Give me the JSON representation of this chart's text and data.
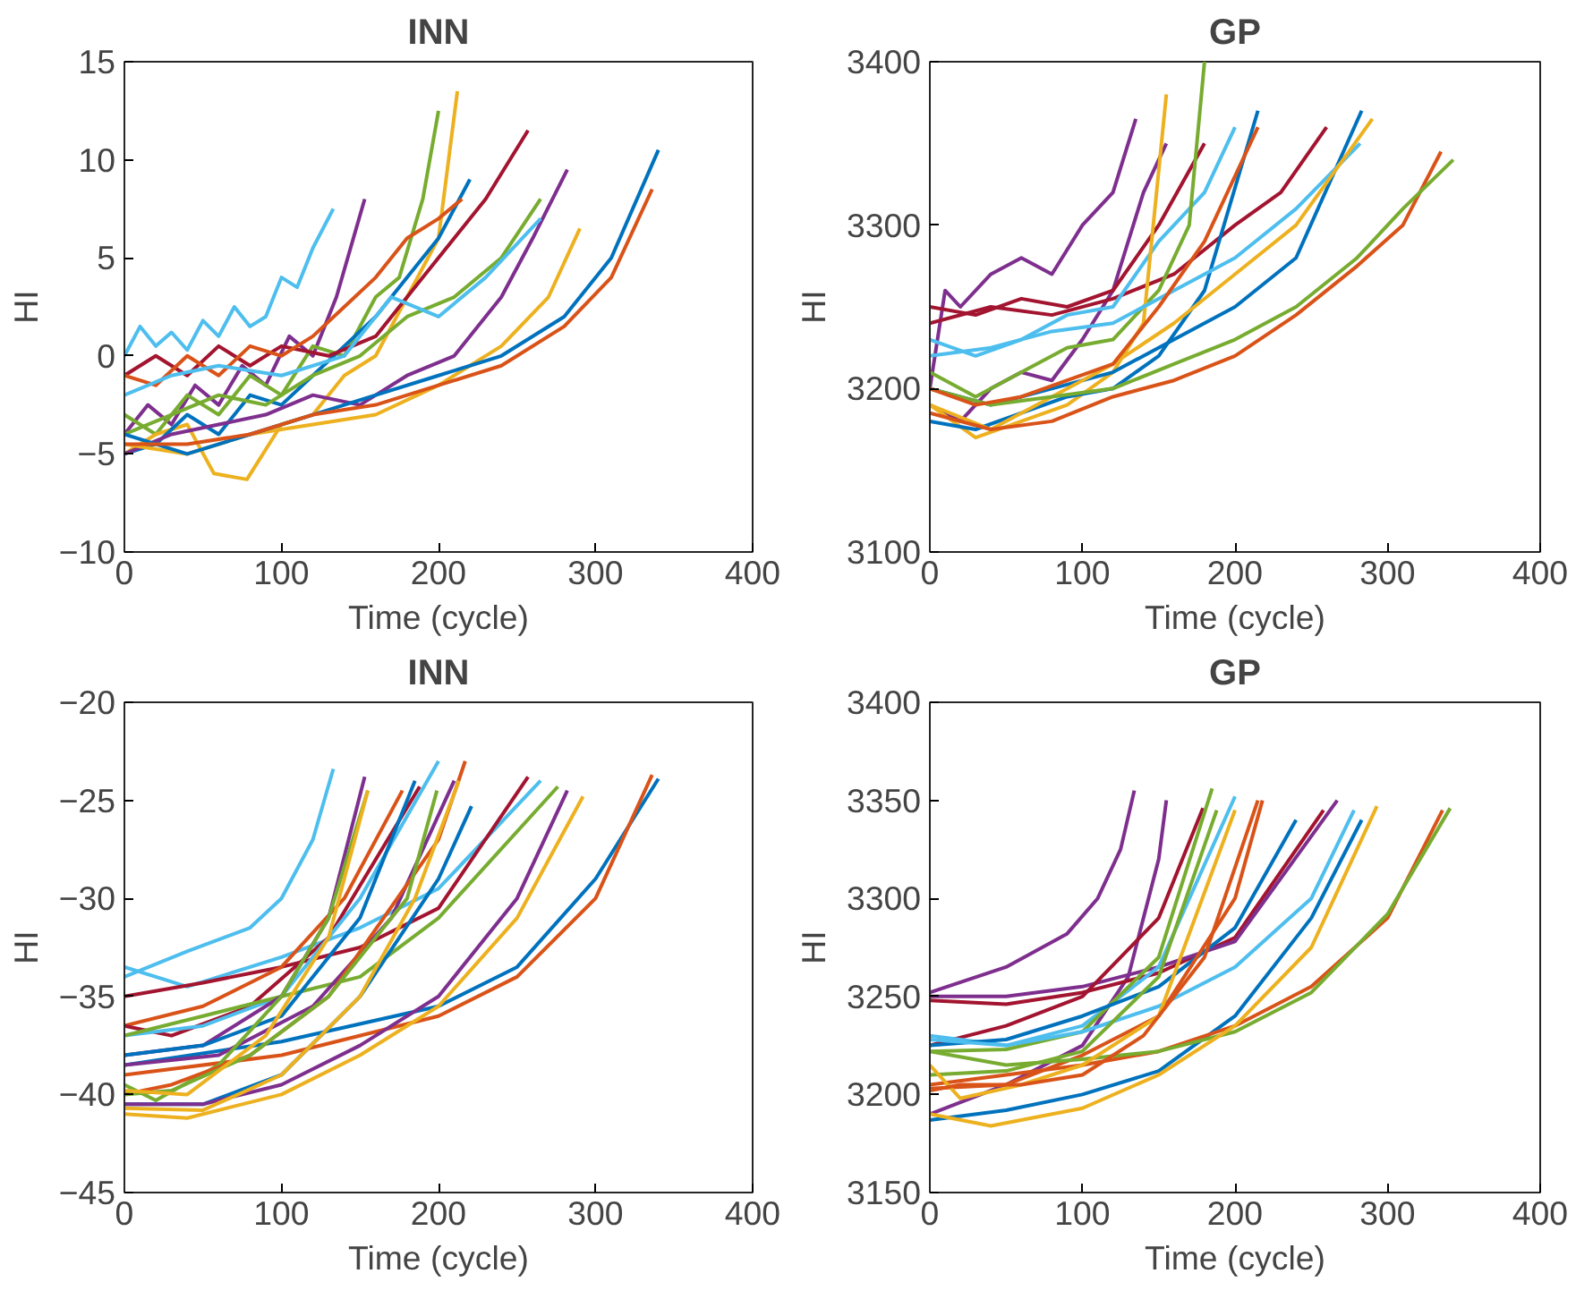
{
  "chart_data": [
    {
      "type": "line",
      "title": "INN",
      "xlabel": "Time (cycle)",
      "ylabel": "HI",
      "xlim": [
        0,
        400
      ],
      "ylim": [
        -10,
        15
      ],
      "xticks": [
        0,
        100,
        200,
        300,
        400
      ],
      "yticks": [
        -10,
        -5,
        0,
        5,
        10,
        15
      ],
      "grid": false,
      "series": [
        {
          "color": "#4dbeee",
          "x": [
            0,
            10,
            20,
            30,
            40,
            50,
            60,
            70,
            80,
            90,
            100,
            110,
            120,
            133
          ],
          "values": [
            0,
            1.5,
            0.5,
            1.2,
            0.3,
            1.8,
            1,
            2.5,
            1.5,
            2,
            4,
            3.5,
            5.5,
            7.5
          ]
        },
        {
          "color": "#7e2f8e",
          "x": [
            0,
            15,
            30,
            45,
            60,
            75,
            90,
            105,
            120,
            135,
            153
          ],
          "values": [
            -4,
            -2.5,
            -3.5,
            -1.5,
            -2.5,
            -0.5,
            -1.5,
            1,
            0,
            3,
            8
          ]
        },
        {
          "color": "#77ac30",
          "x": [
            0,
            20,
            40,
            60,
            80,
            100,
            120,
            140,
            160,
            175,
            190,
            200
          ],
          "values": [
            -3,
            -4,
            -2,
            -3,
            -1,
            -2,
            0.5,
            0,
            3,
            4,
            8,
            12.5
          ]
        },
        {
          "color": "#edb120",
          "x": [
            0,
            20,
            40,
            57,
            78,
            100,
            120,
            140,
            160,
            180,
            200,
            212
          ],
          "values": [
            -5,
            -4,
            -3.5,
            -6,
            -6.3,
            -3.5,
            -3,
            -1,
            0,
            3,
            6,
            13.5
          ]
        },
        {
          "color": "#0072bd",
          "x": [
            0,
            20,
            40,
            60,
            80,
            100,
            120,
            140,
            160,
            180,
            200,
            220
          ],
          "values": [
            -5,
            -4.5,
            -3,
            -4,
            -2,
            -2.5,
            -1,
            0.5,
            2,
            4,
            6,
            9
          ]
        },
        {
          "color": "#a2142f",
          "x": [
            0,
            20,
            40,
            60,
            80,
            100,
            130,
            160,
            190,
            210,
            230,
            257
          ],
          "values": [
            -1,
            0,
            -1,
            0.5,
            -0.5,
            0.5,
            0,
            1,
            4,
            6,
            8,
            11.5
          ]
        },
        {
          "color": "#d95319",
          "x": [
            0,
            20,
            40,
            60,
            80,
            100,
            120,
            140,
            160,
            180,
            200,
            215
          ],
          "values": [
            -1,
            -1.5,
            0,
            -1,
            0.5,
            0,
            1,
            2.5,
            4,
            6,
            7,
            8
          ]
        },
        {
          "color": "#7e2f8e",
          "x": [
            0,
            30,
            60,
            90,
            120,
            150,
            180,
            210,
            240,
            260,
            282
          ],
          "values": [
            -5,
            -4,
            -3.5,
            -3,
            -2,
            -2.5,
            -1,
            0,
            3,
            6,
            9.5
          ]
        },
        {
          "color": "#77ac30",
          "x": [
            0,
            30,
            60,
            90,
            120,
            150,
            180,
            210,
            240,
            265
          ],
          "values": [
            -4,
            -3,
            -2,
            -2.5,
            -1,
            0,
            2,
            3,
            5,
            8
          ]
        },
        {
          "color": "#4dbeee",
          "x": [
            0,
            30,
            60,
            100,
            140,
            170,
            200,
            230,
            265
          ],
          "values": [
            -2,
            -1,
            -0.5,
            -1,
            0,
            3,
            2,
            4,
            7
          ]
        },
        {
          "color": "#edb120",
          "x": [
            0,
            40,
            80,
            120,
            160,
            200,
            240,
            270,
            290
          ],
          "values": [
            -4.5,
            -5,
            -4,
            -3.5,
            -3,
            -1.5,
            0.5,
            3,
            6.5
          ]
        },
        {
          "color": "#0072bd",
          "x": [
            0,
            40,
            80,
            120,
            160,
            200,
            240,
            280,
            310,
            340
          ],
          "values": [
            -4,
            -5,
            -4,
            -3,
            -2,
            -1,
            0,
            2,
            5,
            10.5
          ]
        },
        {
          "color": "#d95319",
          "x": [
            0,
            40,
            80,
            120,
            160,
            200,
            240,
            280,
            310,
            336
          ],
          "values": [
            -4.5,
            -4.5,
            -4,
            -3,
            -2.5,
            -1.5,
            -0.5,
            1.5,
            4,
            8.5
          ]
        }
      ]
    },
    {
      "type": "line",
      "title": "GP",
      "xlabel": "Time (cycle)",
      "ylabel": "HI",
      "xlim": [
        0,
        400
      ],
      "ylim": [
        3100,
        3400
      ],
      "xticks": [
        0,
        100,
        200,
        300,
        400
      ],
      "yticks": [
        3100,
        3200,
        3300,
        3400
      ],
      "grid": false,
      "series": [
        {
          "color": "#7e2f8e",
          "x": [
            0,
            10,
            20,
            40,
            60,
            80,
            100,
            120,
            135
          ],
          "values": [
            3200,
            3260,
            3250,
            3270,
            3280,
            3270,
            3300,
            3320,
            3365
          ]
        },
        {
          "color": "#7e2f8e",
          "x": [
            0,
            20,
            40,
            60,
            80,
            100,
            120,
            140,
            155
          ],
          "values": [
            3190,
            3180,
            3200,
            3210,
            3205,
            3230,
            3260,
            3320,
            3350
          ]
        },
        {
          "color": "#a2142f",
          "x": [
            0,
            30,
            60,
            90,
            120,
            150,
            180
          ],
          "values": [
            3250,
            3245,
            3255,
            3250,
            3260,
            3300,
            3350
          ]
        },
        {
          "color": "#a2142f",
          "x": [
            0,
            40,
            80,
            120,
            160,
            200,
            230,
            260
          ],
          "values": [
            3240,
            3250,
            3245,
            3255,
            3270,
            3300,
            3320,
            3360
          ]
        },
        {
          "color": "#4dbeee",
          "x": [
            0,
            30,
            60,
            90,
            120,
            150,
            180,
            200
          ],
          "values": [
            3230,
            3220,
            3230,
            3245,
            3250,
            3290,
            3320,
            3360
          ]
        },
        {
          "color": "#77ac30",
          "x": [
            0,
            30,
            60,
            90,
            120,
            150,
            170,
            180
          ],
          "values": [
            3210,
            3195,
            3210,
            3225,
            3230,
            3260,
            3300,
            3400
          ]
        },
        {
          "color": "#edb120",
          "x": [
            0,
            30,
            60,
            90,
            120,
            140,
            155
          ],
          "values": [
            3190,
            3170,
            3180,
            3190,
            3210,
            3240,
            3380
          ]
        },
        {
          "color": "#0072bd",
          "x": [
            0,
            30,
            60,
            90,
            120,
            150,
            180,
            215
          ],
          "values": [
            3180,
            3175,
            3185,
            3195,
            3200,
            3220,
            3260,
            3370
          ]
        },
        {
          "color": "#0072bd",
          "x": [
            0,
            40,
            80,
            120,
            160,
            200,
            240,
            283
          ],
          "values": [
            3200,
            3190,
            3200,
            3210,
            3230,
            3250,
            3280,
            3370
          ]
        },
        {
          "color": "#4dbeee",
          "x": [
            0,
            40,
            80,
            120,
            160,
            200,
            240,
            282
          ],
          "values": [
            3220,
            3225,
            3235,
            3240,
            3260,
            3280,
            3310,
            3350
          ]
        },
        {
          "color": "#edb120",
          "x": [
            0,
            40,
            80,
            120,
            160,
            200,
            240,
            290
          ],
          "values": [
            3190,
            3175,
            3195,
            3215,
            3240,
            3270,
            3300,
            3365
          ]
        },
        {
          "color": "#d95319",
          "x": [
            0,
            40,
            80,
            120,
            160,
            200,
            240,
            280,
            310,
            335
          ],
          "values": [
            3185,
            3175,
            3180,
            3195,
            3205,
            3220,
            3245,
            3275,
            3300,
            3345
          ]
        },
        {
          "color": "#77ac30",
          "x": [
            0,
            40,
            80,
            120,
            160,
            200,
            240,
            280,
            310,
            343
          ],
          "values": [
            3200,
            3190,
            3195,
            3200,
            3215,
            3230,
            3250,
            3280,
            3310,
            3340
          ]
        },
        {
          "color": "#d95319",
          "x": [
            0,
            30,
            60,
            90,
            120,
            150,
            180,
            215
          ],
          "values": [
            3200,
            3190,
            3195,
            3205,
            3215,
            3250,
            3290,
            3360
          ]
        }
      ]
    },
    {
      "type": "line",
      "title": "INN",
      "xlabel": "Time (cycle)",
      "ylabel": "HI",
      "xlim": [
        0,
        400
      ],
      "ylim": [
        -45,
        -20
      ],
      "xticks": [
        0,
        100,
        200,
        300,
        400
      ],
      "yticks": [
        -45,
        -40,
        -35,
        -30,
        -25,
        -20
      ],
      "grid": false,
      "series": [
        {
          "color": "#4dbeee",
          "x": [
            0,
            40,
            80,
            100,
            120,
            133
          ],
          "values": [
            -34,
            -32.7,
            -31.5,
            -30,
            -27,
            -23.4
          ]
        },
        {
          "color": "#4dbeee",
          "x": [
            0,
            40,
            100,
            150,
            200,
            265
          ],
          "values": [
            -33.5,
            -34.5,
            -33,
            -31.5,
            -29.5,
            -24
          ]
        },
        {
          "color": "#a2142f",
          "x": [
            0,
            50,
            100,
            150,
            200,
            257
          ],
          "values": [
            -35,
            -34.3,
            -33.5,
            -32.5,
            -30.5,
            -23.8
          ]
        },
        {
          "color": "#d95319",
          "x": [
            0,
            50,
            100,
            140,
            177
          ],
          "values": [
            -36.5,
            -35.5,
            -33.5,
            -30,
            -24.5
          ]
        },
        {
          "color": "#a2142f",
          "x": [
            0,
            30,
            80,
            130,
            188
          ],
          "values": [
            -36.5,
            -37,
            -35.5,
            -32,
            -24.3
          ]
        },
        {
          "color": "#4dbeee",
          "x": [
            0,
            50,
            100,
            150,
            200
          ],
          "values": [
            -37,
            -36.5,
            -35,
            -30,
            -23
          ]
        },
        {
          "color": "#77ac30",
          "x": [
            0,
            50,
            100,
            150,
            200,
            276
          ],
          "values": [
            -37,
            -36,
            -35,
            -34,
            -31,
            -24.3
          ]
        },
        {
          "color": "#7e2f8e",
          "x": [
            0,
            50,
            100,
            130,
            153
          ],
          "values": [
            -38,
            -37.5,
            -35,
            -31,
            -23.8
          ]
        },
        {
          "color": "#0072bd",
          "x": [
            0,
            50,
            100,
            150,
            185
          ],
          "values": [
            -38,
            -37.5,
            -36,
            -31,
            -24
          ]
        },
        {
          "color": "#0072bd",
          "x": [
            0,
            100,
            200,
            250,
            300,
            340
          ],
          "values": [
            -38.5,
            -37.3,
            -35.5,
            -33.5,
            -29,
            -23.9
          ]
        },
        {
          "color": "#d95319",
          "x": [
            0,
            100,
            200,
            250,
            300,
            336
          ],
          "values": [
            -39,
            -38,
            -36,
            -34,
            -30,
            -23.7
          ]
        },
        {
          "color": "#7e2f8e",
          "x": [
            0,
            60,
            120,
            170,
            210
          ],
          "values": [
            -38.5,
            -38,
            -35.5,
            -31,
            -24
          ]
        },
        {
          "color": "#77ac30",
          "x": [
            0,
            20,
            60,
            100,
            130,
            155
          ],
          "values": [
            -39.5,
            -40.3,
            -38.5,
            -35,
            -31,
            -24.5
          ]
        },
        {
          "color": "#d95319",
          "x": [
            0,
            30,
            80,
            130,
            200,
            217
          ],
          "values": [
            -40,
            -39.5,
            -38,
            -35,
            -27,
            -23
          ]
        },
        {
          "color": "#77ac30",
          "x": [
            0,
            30,
            80,
            130,
            180,
            199
          ],
          "values": [
            -40,
            -39.8,
            -38,
            -35,
            -30,
            -24.5
          ]
        },
        {
          "color": "#0072bd",
          "x": [
            0,
            50,
            100,
            150,
            200,
            221
          ],
          "values": [
            -40.5,
            -40.5,
            -39,
            -35,
            -29,
            -25.3
          ]
        },
        {
          "color": "#7e2f8e",
          "x": [
            0,
            50,
            100,
            150,
            200,
            250,
            282
          ],
          "values": [
            -40.5,
            -40.5,
            -39.5,
            -37.5,
            -35,
            -30,
            -24.5
          ]
        },
        {
          "color": "#edb120",
          "x": [
            0,
            40,
            100,
            150,
            200,
            250,
            292
          ],
          "values": [
            -41,
            -41.2,
            -40,
            -38,
            -35.5,
            -31,
            -24.8
          ]
        },
        {
          "color": "#edb120",
          "x": [
            0,
            50,
            100,
            150,
            185,
            213
          ],
          "values": [
            -40.7,
            -40.8,
            -39,
            -35,
            -30,
            -24
          ]
        },
        {
          "color": "#edb120",
          "x": [
            0,
            40,
            90,
            130,
            155
          ],
          "values": [
            -39.8,
            -40,
            -37,
            -32,
            -24.5
          ]
        }
      ]
    },
    {
      "type": "line",
      "title": "GP",
      "xlabel": "Time (cycle)",
      "ylabel": "HI",
      "xlim": [
        0,
        400
      ],
      "ylim": [
        3150,
        3400
      ],
      "xticks": [
        0,
        100,
        200,
        300,
        400
      ],
      "yticks": [
        3150,
        3200,
        3250,
        3300,
        3350,
        3400
      ],
      "grid": false,
      "series": [
        {
          "color": "#7e2f8e",
          "x": [
            0,
            50,
            90,
            110,
            125,
            134
          ],
          "values": [
            3252,
            3265,
            3282,
            3300,
            3325,
            3355
          ]
        },
        {
          "color": "#7e2f8e",
          "x": [
            0,
            50,
            100,
            130,
            150,
            155
          ],
          "values": [
            3190,
            3205,
            3225,
            3260,
            3320,
            3350
          ]
        },
        {
          "color": "#a2142f",
          "x": [
            0,
            50,
            100,
            150,
            200,
            258
          ],
          "values": [
            3248,
            3246,
            3252,
            3262,
            3280,
            3345
          ]
        },
        {
          "color": "#7e2f8e",
          "x": [
            0,
            50,
            100,
            150,
            200,
            267
          ],
          "values": [
            3250,
            3250,
            3255,
            3265,
            3278,
            3350
          ]
        },
        {
          "color": "#a2142f",
          "x": [
            0,
            50,
            100,
            150,
            179
          ],
          "values": [
            3225,
            3235,
            3250,
            3290,
            3346
          ]
        },
        {
          "color": "#4dbeee",
          "x": [
            0,
            50,
            100,
            150,
            200
          ],
          "values": [
            3230,
            3225,
            3235,
            3265,
            3352
          ]
        },
        {
          "color": "#77ac30",
          "x": [
            0,
            50,
            100,
            150,
            185
          ],
          "values": [
            3222,
            3223,
            3232,
            3270,
            3356
          ]
        },
        {
          "color": "#0072bd",
          "x": [
            0,
            50,
            100,
            150,
            200,
            240
          ],
          "values": [
            3225,
            3228,
            3240,
            3255,
            3285,
            3340
          ]
        },
        {
          "color": "#4dbeee",
          "x": [
            0,
            50,
            100,
            150,
            200,
            250,
            278
          ],
          "values": [
            3228,
            3225,
            3232,
            3245,
            3265,
            3300,
            3345
          ]
        },
        {
          "color": "#0072bd",
          "x": [
            0,
            50,
            100,
            150,
            200,
            250,
            283
          ],
          "values": [
            3187,
            3192,
            3200,
            3212,
            3240,
            3290,
            3340
          ]
        },
        {
          "color": "#77ac30",
          "x": [
            0,
            50,
            100,
            150,
            188
          ],
          "values": [
            3210,
            3212,
            3222,
            3260,
            3345
          ]
        },
        {
          "color": "#d95319",
          "x": [
            0,
            50,
            100,
            150,
            200,
            218
          ],
          "values": [
            3203,
            3205,
            3220,
            3240,
            3300,
            3350
          ]
        },
        {
          "color": "#d95319",
          "x": [
            0,
            50,
            100,
            150,
            200,
            250,
            300,
            336
          ],
          "values": [
            3205,
            3210,
            3215,
            3222,
            3235,
            3255,
            3290,
            3345
          ]
        },
        {
          "color": "#77ac30",
          "x": [
            0,
            50,
            100,
            150,
            200,
            250,
            300,
            341
          ],
          "values": [
            3222,
            3215,
            3218,
            3222,
            3232,
            3252,
            3292,
            3346
          ]
        },
        {
          "color": "#edb120",
          "x": [
            0,
            40,
            100,
            150,
            200,
            250,
            293
          ],
          "values": [
            3190,
            3184,
            3193,
            3210,
            3235,
            3275,
            3347
          ]
        },
        {
          "color": "#edb120",
          "x": [
            0,
            20,
            60,
            100,
            150,
            200
          ],
          "values": [
            3215,
            3198,
            3205,
            3215,
            3240,
            3345
          ]
        },
        {
          "color": "#d95319",
          "x": [
            0,
            20,
            60,
            100,
            140,
            180,
            215
          ],
          "values": [
            3202,
            3205,
            3205,
            3210,
            3230,
            3270,
            3350
          ]
        }
      ]
    }
  ]
}
